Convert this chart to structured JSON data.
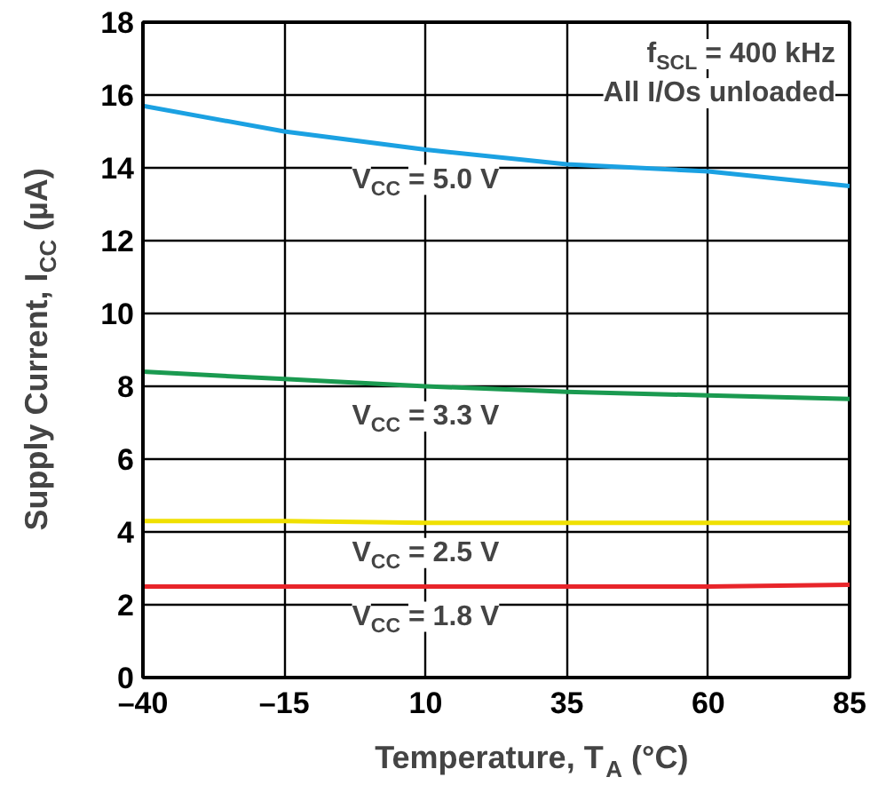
{
  "chart_data": {
    "type": "line",
    "xlabel": "Temperature, T$_{A}$ (°C)",
    "ylabel": "Supply Current, I$_{CC}$ (µA)",
    "x": [
      -40,
      -15,
      10,
      35,
      60,
      85
    ],
    "series": [
      {
        "name": "V$_{CC}$ = 5.0 V",
        "color": "#1ba1e2",
        "values": [
          15.7,
          15.0,
          14.5,
          14.1,
          13.9,
          13.5
        ]
      },
      {
        "name": "V$_{CC}$ = 3.3 V",
        "color": "#1a9a50",
        "values": [
          8.4,
          8.2,
          8.0,
          7.85,
          7.75,
          7.65
        ]
      },
      {
        "name": "V$_{CC}$ = 2.5 V",
        "color": "#f0e000",
        "values": [
          4.3,
          4.3,
          4.25,
          4.25,
          4.25,
          4.25
        ]
      },
      {
        "name": "V$_{CC}$ = 1.8 V",
        "color": "#e8252a",
        "values": [
          2.5,
          2.5,
          2.5,
          2.5,
          2.5,
          2.55
        ]
      }
    ],
    "xlim": [
      -40,
      85
    ],
    "xticks": [
      {
        "value": -40,
        "label": "–40"
      },
      {
        "value": -15,
        "label": "–15"
      },
      10,
      35,
      60,
      85
    ],
    "ylim": [
      0,
      18
    ],
    "yticks": [
      0,
      2,
      4,
      6,
      8,
      10,
      12,
      14,
      16,
      18
    ],
    "grid": true,
    "legend": false,
    "marker": "none",
    "line_style": "solid",
    "annotations": [
      "f$_{SCL}$ = 400 kHz",
      "All I/Os unloaded"
    ]
  }
}
